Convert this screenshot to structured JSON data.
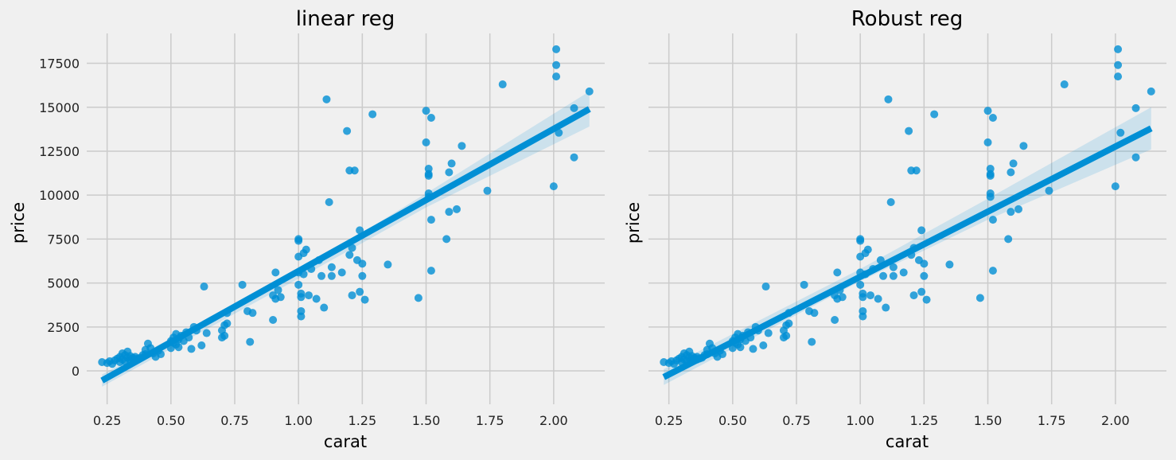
{
  "colors": {
    "background": "#f0f0f0",
    "grid": "#cbcbcb",
    "series": "#008fd5"
  },
  "chart_data": [
    {
      "type": "scatter",
      "title": "linear reg",
      "xlabel": "carat",
      "ylabel": "price",
      "xlim": [
        0.17,
        2.2
      ],
      "ylim": [
        -1900,
        19200
      ],
      "xticks": [
        0.25,
        0.5,
        0.75,
        1.0,
        1.25,
        1.5,
        1.75,
        2.0
      ],
      "xtick_labels": [
        "0.25",
        "0.50",
        "0.75",
        "1.00",
        "1.25",
        "1.50",
        "1.75",
        "2.00"
      ],
      "yticks": [
        0,
        2500,
        5000,
        7500,
        10000,
        12500,
        15000,
        17500
      ],
      "ytick_labels": [
        "0",
        "2500",
        "5000",
        "7500",
        "10000",
        "12500",
        "15000",
        "17500"
      ],
      "grid": true,
      "fit_line": {
        "x": [
          0.23,
          2.14
        ],
        "y": [
          -550,
          14900
        ]
      },
      "confidence_band": {
        "x": [
          0.23,
          1.0,
          1.5,
          2.14
        ],
        "lower": [
          -900,
          5250,
          9300,
          13900
        ],
        "upper": [
          -200,
          5650,
          10100,
          15900
        ]
      }
    },
    {
      "type": "scatter",
      "title": "Robust reg",
      "xlabel": "carat",
      "ylabel": "price",
      "xlim": [
        0.17,
        2.2
      ],
      "ylim": [
        -1900,
        19200
      ],
      "xticks": [
        0.25,
        0.5,
        0.75,
        1.0,
        1.25,
        1.5,
        1.75,
        2.0
      ],
      "xtick_labels": [
        "0.25",
        "0.50",
        "0.75",
        "1.00",
        "1.25",
        "1.50",
        "1.75",
        "2.00"
      ],
      "yticks": [
        0,
        2500,
        5000,
        7500,
        10000,
        12500,
        15000,
        17500
      ],
      "ytick_labels": [],
      "grid": true,
      "fit_line": {
        "x": [
          0.23,
          2.14
        ],
        "y": [
          -350,
          13800
        ]
      },
      "confidence_band": {
        "x": [
          0.23,
          1.0,
          1.5,
          2.14
        ],
        "lower": [
          -800,
          5100,
          8600,
          12600
        ],
        "upper": [
          100,
          5800,
          9800,
          15000
        ]
      }
    }
  ],
  "points": {
    "x": [
      0.23,
      0.25,
      0.26,
      0.27,
      0.28,
      0.29,
      0.3,
      0.3,
      0.31,
      0.31,
      0.32,
      0.32,
      0.33,
      0.33,
      0.34,
      0.34,
      0.35,
      0.35,
      0.36,
      0.36,
      0.37,
      0.38,
      0.39,
      0.4,
      0.4,
      0.41,
      0.42,
      0.43,
      0.44,
      0.45,
      0.46,
      0.5,
      0.5,
      0.51,
      0.51,
      0.52,
      0.52,
      0.53,
      0.53,
      0.54,
      0.55,
      0.56,
      0.57,
      0.58,
      0.59,
      0.6,
      0.62,
      0.63,
      0.64,
      0.7,
      0.7,
      0.71,
      0.71,
      0.72,
      0.72,
      0.78,
      0.8,
      0.81,
      0.82,
      0.9,
      0.9,
      0.91,
      0.91,
      0.92,
      0.93,
      1.0,
      1.0,
      1.0,
      1.0,
      1.0,
      1.01,
      1.01,
      1.01,
      1.01,
      1.02,
      1.02,
      1.03,
      1.04,
      1.05,
      1.07,
      1.08,
      1.09,
      1.1,
      1.11,
      1.12,
      1.13,
      1.13,
      1.17,
      1.19,
      1.2,
      1.2,
      1.21,
      1.21,
      1.22,
      1.23,
      1.24,
      1.24,
      1.25,
      1.25,
      1.26,
      1.29,
      1.35,
      1.47,
      1.5,
      1.5,
      1.51,
      1.51,
      1.51,
      1.51,
      1.51,
      1.52,
      1.52,
      1.52,
      1.58,
      1.59,
      1.59,
      1.6,
      1.62,
      1.64,
      1.74,
      1.8,
      2.0,
      2.01,
      2.01,
      2.01,
      2.02,
      2.08,
      2.08,
      2.14
    ],
    "y": [
      500,
      450,
      550,
      400,
      600,
      700,
      500,
      800,
      650,
      1000,
      550,
      900,
      750,
      1100,
      600,
      850,
      700,
      750,
      800,
      650,
      700,
      750,
      900,
      1200,
      950,
      1550,
      1300,
      1000,
      800,
      1150,
      950,
      1300,
      1700,
      1900,
      1600,
      2100,
      1500,
      1800,
      1350,
      2000,
      1700,
      2200,
      1900,
      1250,
      2500,
      2300,
      1450,
      4800,
      2150,
      2300,
      1900,
      2600,
      2000,
      3300,
      2700,
      4900,
      3400,
      1650,
      3300,
      2900,
      4300,
      5600,
      4100,
      4600,
      4200,
      7500,
      7400,
      6500,
      5600,
      4900,
      4400,
      4200,
      3400,
      3100,
      5500,
      6700,
      6900,
      4300,
      5800,
      4100,
      6300,
      5400,
      3600,
      15450,
      9600,
      5900,
      5400,
      5600,
      13650,
      11400,
      6600,
      7000,
      4300,
      11400,
      6300,
      8000,
      4500,
      6100,
      5400,
      4050,
      14600,
      6050,
      4150,
      14800,
      13000,
      11500,
      11200,
      11100,
      10100,
      9900,
      14400,
      8600,
      5700,
      7500,
      9050,
      11300,
      11800,
      9200,
      12800,
      10250,
      16300,
      10500,
      17400,
      16750,
      18300,
      13550,
      12150,
      14950,
      15900
    ]
  }
}
